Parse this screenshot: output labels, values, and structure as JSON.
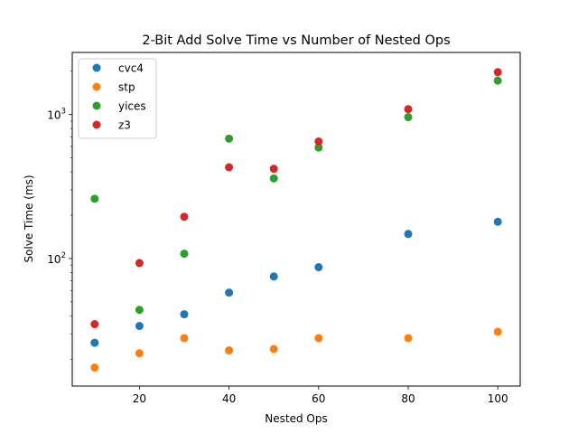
{
  "chart_data": {
    "type": "scatter",
    "title": "2-Bit Add Solve Time vs Number of Nested Ops",
    "xlabel": "Nested Ops",
    "ylabel": "Solve Time (ms)",
    "yscale": "log",
    "xlim": [
      5,
      105
    ],
    "ylim": [
      13,
      2700
    ],
    "x_ticks": [
      20,
      40,
      60,
      80,
      100
    ],
    "y_ticks": [
      {
        "value": 100,
        "base": "10",
        "exp": "2"
      },
      {
        "value": 1000,
        "base": "10",
        "exp": "3"
      }
    ],
    "legend_position": "top-left",
    "x": [
      10,
      20,
      30,
      40,
      50,
      60,
      80,
      100
    ],
    "series": [
      {
        "name": "cvc4",
        "color": "#1f77b4",
        "values": [
          26,
          34,
          41,
          58,
          75,
          87,
          148,
          180
        ]
      },
      {
        "name": "stp",
        "color": "#ff7f0e",
        "values": [
          17.5,
          22,
          28,
          23,
          23.5,
          28,
          28,
          31
        ]
      },
      {
        "name": "yices",
        "color": "#2ca02c",
        "values": [
          260,
          44,
          108,
          680,
          360,
          590,
          960,
          1720
        ]
      },
      {
        "name": "z3",
        "color": "#d62728",
        "values": [
          35,
          93,
          195,
          430,
          420,
          650,
          1090,
          1970
        ]
      }
    ]
  }
}
